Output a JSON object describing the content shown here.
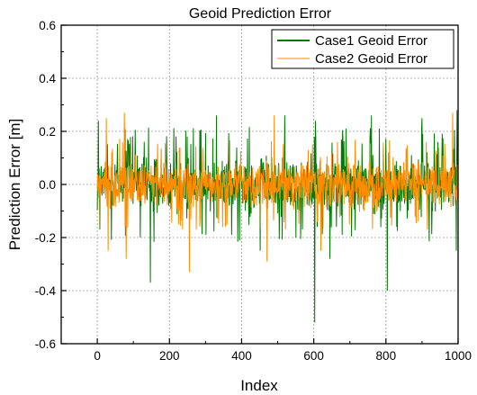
{
  "chart_data": {
    "type": "line",
    "title": "Geoid Prediction Error",
    "xlabel": "Index",
    "ylabel": "Prediction Error [m]",
    "xlim": [
      -100,
      1000
    ],
    "ylim": [
      -0.6,
      0.6
    ],
    "x_ticks": [
      0,
      200,
      400,
      600,
      800,
      1000
    ],
    "y_ticks": [
      -0.6,
      -0.4,
      -0.2,
      0.0,
      0.2,
      0.4,
      0.6
    ],
    "y_tick_labels": [
      "-0.6",
      "-0.4",
      "-0.2",
      "0.0",
      "0.2",
      "0.4",
      "0.6"
    ],
    "grid": true,
    "legend": "top-right",
    "series": [
      {
        "name": "Case1 Geoid Error",
        "color": "#007a00",
        "x_range": [
          0,
          1000
        ],
        "n_points": 1000,
        "typical_range": [
          -0.15,
          0.15
        ],
        "extremes": [
          {
            "x": 3,
            "y": 0.24
          },
          {
            "x": 147,
            "y": -0.37
          },
          {
            "x": 330,
            "y": 0.26
          },
          {
            "x": 451,
            "y": -0.25
          },
          {
            "x": 520,
            "y": 0.26
          },
          {
            "x": 603,
            "y": -0.52
          },
          {
            "x": 605,
            "y": 0.24
          },
          {
            "x": 645,
            "y": -0.28
          },
          {
            "x": 760,
            "y": 0.26
          },
          {
            "x": 804,
            "y": -0.4
          },
          {
            "x": 900,
            "y": 0.25
          },
          {
            "x": 997,
            "y": 0.28
          },
          {
            "x": 995,
            "y": -0.25
          }
        ]
      },
      {
        "name": "Case2 Geoid Error",
        "color": "#ff8c00",
        "x_range": [
          0,
          1000
        ],
        "n_points": 1000,
        "typical_range": [
          -0.12,
          0.12
        ],
        "extremes": [
          {
            "x": 25,
            "y": 0.25
          },
          {
            "x": 30,
            "y": -0.25
          },
          {
            "x": 75,
            "y": 0.27
          },
          {
            "x": 80,
            "y": -0.28
          },
          {
            "x": 255,
            "y": -0.33
          },
          {
            "x": 470,
            "y": -0.29
          },
          {
            "x": 490,
            "y": 0.26
          },
          {
            "x": 620,
            "y": -0.25
          },
          {
            "x": 985,
            "y": 0.27
          }
        ]
      }
    ]
  }
}
